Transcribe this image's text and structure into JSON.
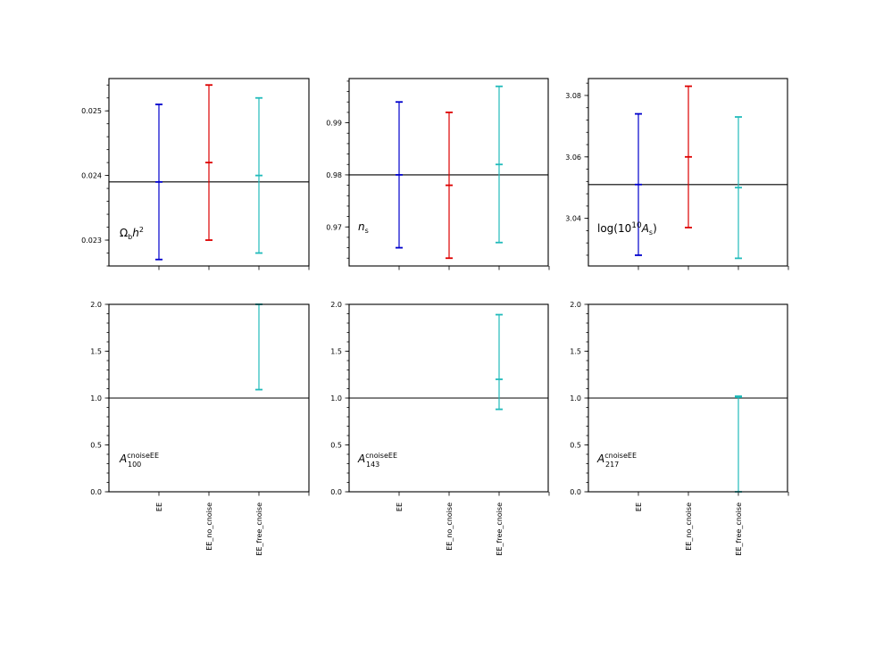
{
  "chart_data": [
    {
      "type": "errorbar",
      "label": "Ωbh²",
      "label_parts": {
        "base": "Ω",
        "sub": "b",
        "mid": "h",
        "sup": "2"
      },
      "categories": [
        "EE",
        "EE_no_cnoise",
        "EE_free_cnoise"
      ],
      "reference_line": 0.0239,
      "ylim": [
        0.0226,
        0.0255
      ],
      "yticks": [
        "0.023",
        "0.024",
        "0.025"
      ],
      "series": [
        {
          "category": "EE",
          "low": 0.0227,
          "mid": 0.0239,
          "high": 0.0251,
          "color": "#0000cc"
        },
        {
          "category": "EE_no_cnoise",
          "low": 0.023,
          "mid": 0.0242,
          "high": 0.0254,
          "color": "#dd0000"
        },
        {
          "category": "EE_free_cnoise",
          "low": 0.0228,
          "mid": 0.024,
          "high": 0.0252,
          "color": "#22bbbb"
        }
      ]
    },
    {
      "type": "errorbar",
      "label": "ns",
      "label_parts": {
        "base": "n",
        "sub": "s"
      },
      "categories": [
        "EE",
        "EE_no_cnoise",
        "EE_free_cnoise"
      ],
      "reference_line": 0.98,
      "ylim": [
        0.9625,
        0.9985
      ],
      "yticks": [
        "0.97",
        "0.98",
        "0.99"
      ],
      "series": [
        {
          "category": "EE",
          "low": 0.966,
          "mid": 0.98,
          "high": 0.994,
          "color": "#0000cc"
        },
        {
          "category": "EE_no_cnoise",
          "low": 0.964,
          "mid": 0.978,
          "high": 0.992,
          "color": "#dd0000"
        },
        {
          "category": "EE_free_cnoise",
          "low": 0.967,
          "mid": 0.982,
          "high": 0.997,
          "color": "#22bbbb"
        }
      ]
    },
    {
      "type": "errorbar",
      "label": "log(10¹⁰As)",
      "label_parts": {
        "pre": "log(10",
        "sup": "10",
        "base": "A",
        "sub": "s",
        "post": ")"
      },
      "categories": [
        "EE",
        "EE_no_cnoise",
        "EE_free_cnoise"
      ],
      "reference_line": 3.051,
      "ylim": [
        3.0245,
        3.0855
      ],
      "yticks": [
        "3.04",
        "3.06",
        "3.08"
      ],
      "series": [
        {
          "category": "EE",
          "low": 3.028,
          "mid": 3.051,
          "high": 3.074,
          "color": "#0000cc"
        },
        {
          "category": "EE_no_cnoise",
          "low": 3.037,
          "mid": 3.06,
          "high": 3.083,
          "color": "#dd0000"
        },
        {
          "category": "EE_free_cnoise",
          "low": 3.027,
          "mid": 3.05,
          "high": 3.073,
          "color": "#22bbbb"
        }
      ]
    },
    {
      "type": "errorbar",
      "label": "A100cnoiseEE",
      "label_parts": {
        "base": "A",
        "sub": "100",
        "sup": "cnoiseEE"
      },
      "categories": [
        "EE",
        "EE_no_cnoise",
        "EE_free_cnoise"
      ],
      "reference_line": 1.0,
      "ylim": [
        0,
        2.0
      ],
      "yticks": [
        "0.0",
        "0.5",
        "1.0",
        "1.5",
        "2.0"
      ],
      "series": [
        {
          "category": "EE_free_cnoise",
          "low": 1.09,
          "mid": 2.0,
          "high": 2.0,
          "color": "#22bbbb"
        }
      ]
    },
    {
      "type": "errorbar",
      "label": "A143cnoiseEE",
      "label_parts": {
        "base": "A",
        "sub": "143",
        "sup": "cnoiseEE"
      },
      "categories": [
        "EE",
        "EE_no_cnoise",
        "EE_free_cnoise"
      ],
      "reference_line": 1.0,
      "ylim": [
        0,
        2.0
      ],
      "yticks": [
        "0.0",
        "0.5",
        "1.0",
        "1.5",
        "2.0"
      ],
      "series": [
        {
          "category": "EE_free_cnoise",
          "low": 0.88,
          "mid": 1.2,
          "high": 1.89,
          "color": "#22bbbb"
        }
      ]
    },
    {
      "type": "errorbar",
      "label": "A217cnoiseEE",
      "label_parts": {
        "base": "A",
        "sub": "217",
        "sup": "cnoiseEE"
      },
      "categories": [
        "EE",
        "EE_no_cnoise",
        "EE_free_cnoise"
      ],
      "reference_line": 1.0,
      "ylim": [
        0,
        2.0
      ],
      "yticks": [
        "0.0",
        "0.5",
        "1.0",
        "1.5",
        "2.0"
      ],
      "series": [
        {
          "category": "EE_free_cnoise",
          "low": 0.0,
          "mid": 1.01,
          "high": 1.02,
          "color": "#22bbbb"
        }
      ]
    }
  ]
}
